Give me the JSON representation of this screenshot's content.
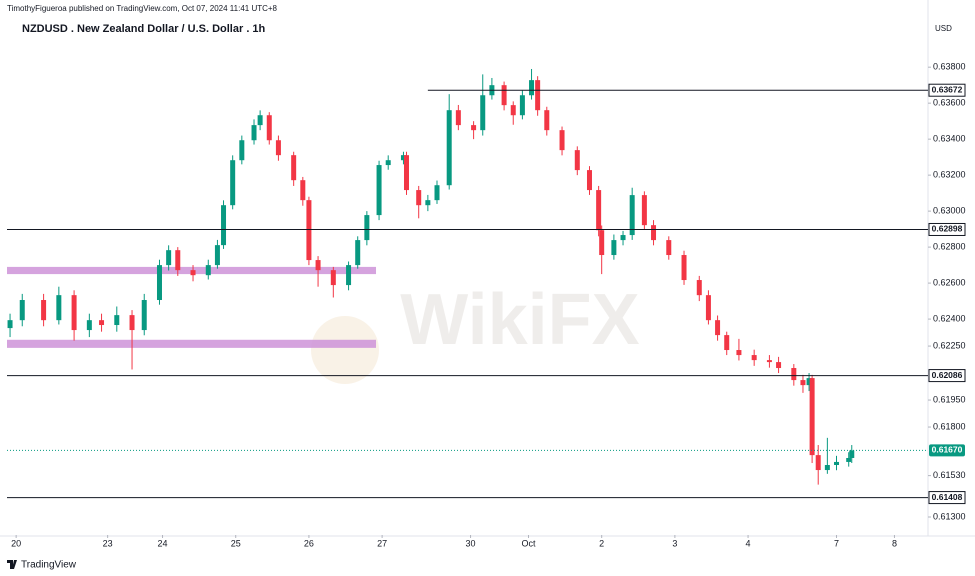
{
  "chart_data": {
    "type": "candlestick",
    "source": "TimothyFigueroa published on TradingView.com, Oct 07, 2024 11:41 UTC+8",
    "title": "NZDUSD . New Zealand Dollar / U.S. Dollar . 1h",
    "currency": "USD",
    "footer": "TradingView",
    "watermark": "WikiFX",
    "up_color": "#089981",
    "down_color": "#f23645",
    "grid": false,
    "x": [
      0,
      4,
      11,
      16,
      21,
      26,
      30,
      35,
      40,
      44,
      49,
      52,
      55,
      60,
      65,
      68,
      70,
      73,
      76,
      80,
      82,
      85,
      88,
      93,
      96,
      98,
      101,
      106,
      111,
      114,
      117,
      121,
      124,
      129,
      130,
      134,
      137,
      140,
      144,
      147,
      152,
      155,
      158,
      162,
      165,
      168,
      171,
      173,
      176,
      181,
      186,
      190,
      193,
      194,
      198,
      201,
      204,
      208,
      211,
      216,
      221,
      226,
      229,
      232,
      235,
      239,
      244,
      249,
      252,
      257,
      260,
      262,
      263,
      265,
      268,
      271,
      275,
      276
    ],
    "open": [
      0.6235,
      0.62394,
      0.62506,
      0.62394,
      0.62533,
      0.62339,
      0.62394,
      0.62367,
      0.62422,
      0.62339,
      0.62506,
      0.627,
      0.62783,
      0.62672,
      0.62644,
      0.627,
      0.62811,
      0.63033,
      0.63283,
      0.63394,
      0.63478,
      0.63533,
      0.63394,
      0.63311,
      0.63172,
      0.63061,
      0.62728,
      0.62672,
      0.62589,
      0.627,
      0.62839,
      0.62978,
      0.63256,
      0.63283,
      0.63311,
      0.63117,
      0.63033,
      0.63061,
      0.63144,
      0.63561,
      0.63478,
      0.6345,
      0.63644,
      0.637,
      0.63589,
      0.63533,
      0.63644,
      0.63728,
      0.63561,
      0.6345,
      0.63339,
      0.63228,
      0.63117,
      0.62894,
      0.62756,
      0.62839,
      0.62867,
      0.63089,
      0.62922,
      0.62839,
      0.62756,
      0.62617,
      0.62533,
      0.62394,
      0.62311,
      0.62228,
      0.622,
      0.62172,
      0.62161,
      0.62128,
      0.62061,
      0.62033,
      0.62072,
      0.61644,
      0.61561,
      0.61589,
      0.61606,
      0.61628
    ],
    "high": [
      0.6243,
      0.6254,
      0.6254,
      0.6258,
      0.6256,
      0.6243,
      0.6243,
      0.6247,
      0.6245,
      0.6254,
      0.6273,
      0.6281,
      0.628,
      0.627,
      0.6273,
      0.6284,
      0.6306,
      0.6331,
      0.6342,
      0.6351,
      0.6356,
      0.6355,
      0.6342,
      0.6333,
      0.6319,
      0.6308,
      0.6275,
      0.6269,
      0.6272,
      0.6286,
      0.63,
      0.6328,
      0.6331,
      0.6333,
      0.6333,
      0.6314,
      0.6309,
      0.6317,
      0.6365,
      0.6359,
      0.635,
      0.6376,
      0.6374,
      0.6372,
      0.6361,
      0.6367,
      0.6379,
      0.6375,
      0.6358,
      0.6347,
      0.6336,
      0.6325,
      0.6314,
      0.6292,
      0.6287,
      0.6289,
      0.6313,
      0.6311,
      0.6295,
      0.6286,
      0.6278,
      0.6264,
      0.6256,
      0.6242,
      0.6233,
      0.6229,
      0.6223,
      0.622,
      0.6219,
      0.6215,
      0.6209,
      0.621,
      0.6209,
      0.617,
      0.6174,
      0.6164,
      0.6166,
      0.617
    ],
    "low": [
      0.623,
      0.6236,
      0.6236,
      0.6237,
      0.6228,
      0.623,
      0.6233,
      0.6233,
      0.6212,
      0.6231,
      0.6248,
      0.6267,
      0.6264,
      0.6261,
      0.6262,
      0.6268,
      0.6279,
      0.6301,
      0.6326,
      0.6337,
      0.6345,
      0.6337,
      0.6328,
      0.6314,
      0.6303,
      0.627,
      0.6258,
      0.6252,
      0.6256,
      0.6268,
      0.6281,
      0.6295,
      0.6323,
      0.6326,
      0.6309,
      0.6296,
      0.63,
      0.6304,
      0.6312,
      0.6345,
      0.634,
      0.6342,
      0.6362,
      0.6356,
      0.6348,
      0.6351,
      0.6362,
      0.6353,
      0.6342,
      0.6331,
      0.632,
      0.6309,
      0.6286,
      0.6265,
      0.6273,
      0.6281,
      0.6284,
      0.629,
      0.6281,
      0.6273,
      0.6259,
      0.625,
      0.6237,
      0.6228,
      0.622,
      0.6217,
      0.6214,
      0.6213,
      0.621,
      0.6203,
      0.6199,
      0.62,
      0.616,
      0.6148,
      0.6154,
      0.6156,
      0.6158,
      0.616
    ],
    "close": [
      0.62394,
      0.62506,
      0.62394,
      0.62533,
      0.62339,
      0.62394,
      0.62367,
      0.62422,
      0.62339,
      0.62506,
      0.627,
      0.62783,
      0.62672,
      0.62644,
      0.627,
      0.62811,
      0.63033,
      0.63283,
      0.63394,
      0.63478,
      0.63533,
      0.63394,
      0.63311,
      0.63172,
      0.63061,
      0.62728,
      0.62672,
      0.62589,
      0.627,
      0.62839,
      0.62978,
      0.63256,
      0.63283,
      0.63311,
      0.63117,
      0.63033,
      0.63061,
      0.63144,
      0.63561,
      0.63478,
      0.6345,
      0.63644,
      0.637,
      0.63589,
      0.63533,
      0.63644,
      0.63728,
      0.63561,
      0.6345,
      0.63339,
      0.63228,
      0.63117,
      0.62894,
      0.62756,
      0.62839,
      0.62867,
      0.63089,
      0.62922,
      0.62839,
      0.62756,
      0.62617,
      0.62533,
      0.62394,
      0.62311,
      0.62228,
      0.622,
      0.62172,
      0.62161,
      0.62128,
      0.62061,
      0.62033,
      0.62072,
      0.61644,
      0.61561,
      0.61589,
      0.61606,
      0.61628,
      0.6167
    ],
    "xlim": [
      -1,
      301
    ],
    "xticks": [
      {
        "value": 2,
        "label": "20"
      },
      {
        "value": 32,
        "label": "23"
      },
      {
        "value": 50,
        "label": "24"
      },
      {
        "value": 74,
        "label": "25"
      },
      {
        "value": 98,
        "label": "26"
      },
      {
        "value": 122,
        "label": "27"
      },
      {
        "value": 151,
        "label": "30"
      },
      {
        "value": 170,
        "label": "Oct"
      },
      {
        "value": 194,
        "label": "2"
      },
      {
        "value": 218,
        "label": "3"
      },
      {
        "value": 242,
        "label": "4"
      },
      {
        "value": 271,
        "label": "7"
      },
      {
        "value": 290,
        "label": "8"
      }
    ],
    "ylim": [
      0.612,
      0.6409
    ],
    "yticks": [
      {
        "value": 0.638,
        "label": "0.63800"
      },
      {
        "value": 0.636,
        "label": "0.63600"
      },
      {
        "value": 0.634,
        "label": "0.63400"
      },
      {
        "value": 0.632,
        "label": "0.63200"
      },
      {
        "value": 0.63,
        "label": "0.63000"
      },
      {
        "value": 0.628,
        "label": "0.62800"
      },
      {
        "value": 0.626,
        "label": "0.62600"
      },
      {
        "value": 0.624,
        "label": "0.62400"
      },
      {
        "value": 0.6225,
        "label": "0.62250"
      },
      {
        "value": 0.6195,
        "label": "0.61950"
      },
      {
        "value": 0.618,
        "label": "0.61800"
      },
      {
        "value": 0.6153,
        "label": "0.61530"
      },
      {
        "value": 0.613,
        "label": "0.61300"
      }
    ],
    "levels": [
      {
        "value": 0.63672,
        "from": 137
      },
      {
        "value": 0.62898,
        "from": -1
      },
      {
        "value": 0.62086,
        "from": -1
      },
      {
        "value": 0.61408,
        "from": -1
      }
    ],
    "level_color": "#131722",
    "last_price": {
      "value": 0.6167,
      "label": "0.61670",
      "color": "#089981"
    },
    "zones": [
      {
        "from": -1,
        "to": 120,
        "low": 0.6265,
        "high": 0.6269,
        "color": "#ce93d8"
      },
      {
        "from": -1,
        "to": 120,
        "low": 0.6224,
        "high": 0.62285,
        "color": "#ce93d8"
      }
    ]
  }
}
